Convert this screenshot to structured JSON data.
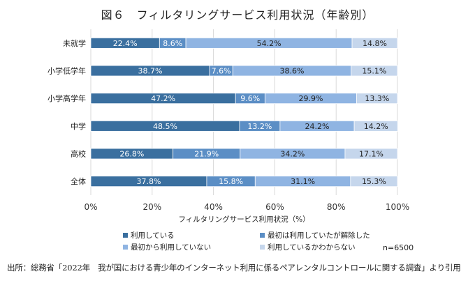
{
  "title": "図６　フィルタリングサービス利用状況（年齢別）",
  "chart_data": {
    "type": "bar",
    "orientation": "horizontal",
    "stacked": true,
    "categories": [
      "未就学",
      "小学低学年",
      "小学高学年",
      "中学",
      "高校",
      "全体"
    ],
    "series": [
      {
        "name": "利用している",
        "values": [
          22.4,
          38.7,
          47.2,
          48.5,
          26.8,
          37.8
        ],
        "labels": [
          "22.4%",
          "38.7%",
          "47.2%",
          "48.5%",
          "26.8%",
          "37.8%"
        ],
        "color": "#3a6f9f"
      },
      {
        "name": "最初は利用していたが解除した",
        "values": [
          8.6,
          7.6,
          9.6,
          13.2,
          21.9,
          15.8
        ],
        "labels": [
          "8.6%",
          "7.6%",
          "9.6%",
          "13.2%",
          "21.9%",
          "15.8%"
        ],
        "color": "#5b8ec5"
      },
      {
        "name": "最初から利用していない",
        "values": [
          54.2,
          38.6,
          29.9,
          24.2,
          34.2,
          31.1
        ],
        "labels": [
          "54.2%",
          "38.6%",
          "29.9%",
          "24.2%",
          "34.2%",
          "31.1%"
        ],
        "color": "#8fb4e2"
      },
      {
        "name": "利用しているかわからない",
        "values": [
          14.8,
          15.1,
          13.3,
          14.2,
          17.1,
          15.3
        ],
        "labels": [
          "14.8%",
          "15.1%",
          "13.3%",
          "14.2%",
          "17.1%",
          "15.3%"
        ],
        "color": "#c5d6ec"
      }
    ],
    "xlabel": "フィルタリングサービス利用状況（%）",
    "xlim": [
      0,
      100
    ],
    "xticks": [
      0,
      20,
      40,
      60,
      80,
      100
    ],
    "xtick_labels": [
      "0%",
      "20%",
      "40%",
      "60%",
      "80%",
      "100%"
    ],
    "grid": "vertical",
    "legend_position": "bottom"
  },
  "note": "n=6500",
  "source": "出所：総務省「2022年　我が国における青少年のインターネット利用に係るペアレンタルコントロールに関する調査」より引用"
}
